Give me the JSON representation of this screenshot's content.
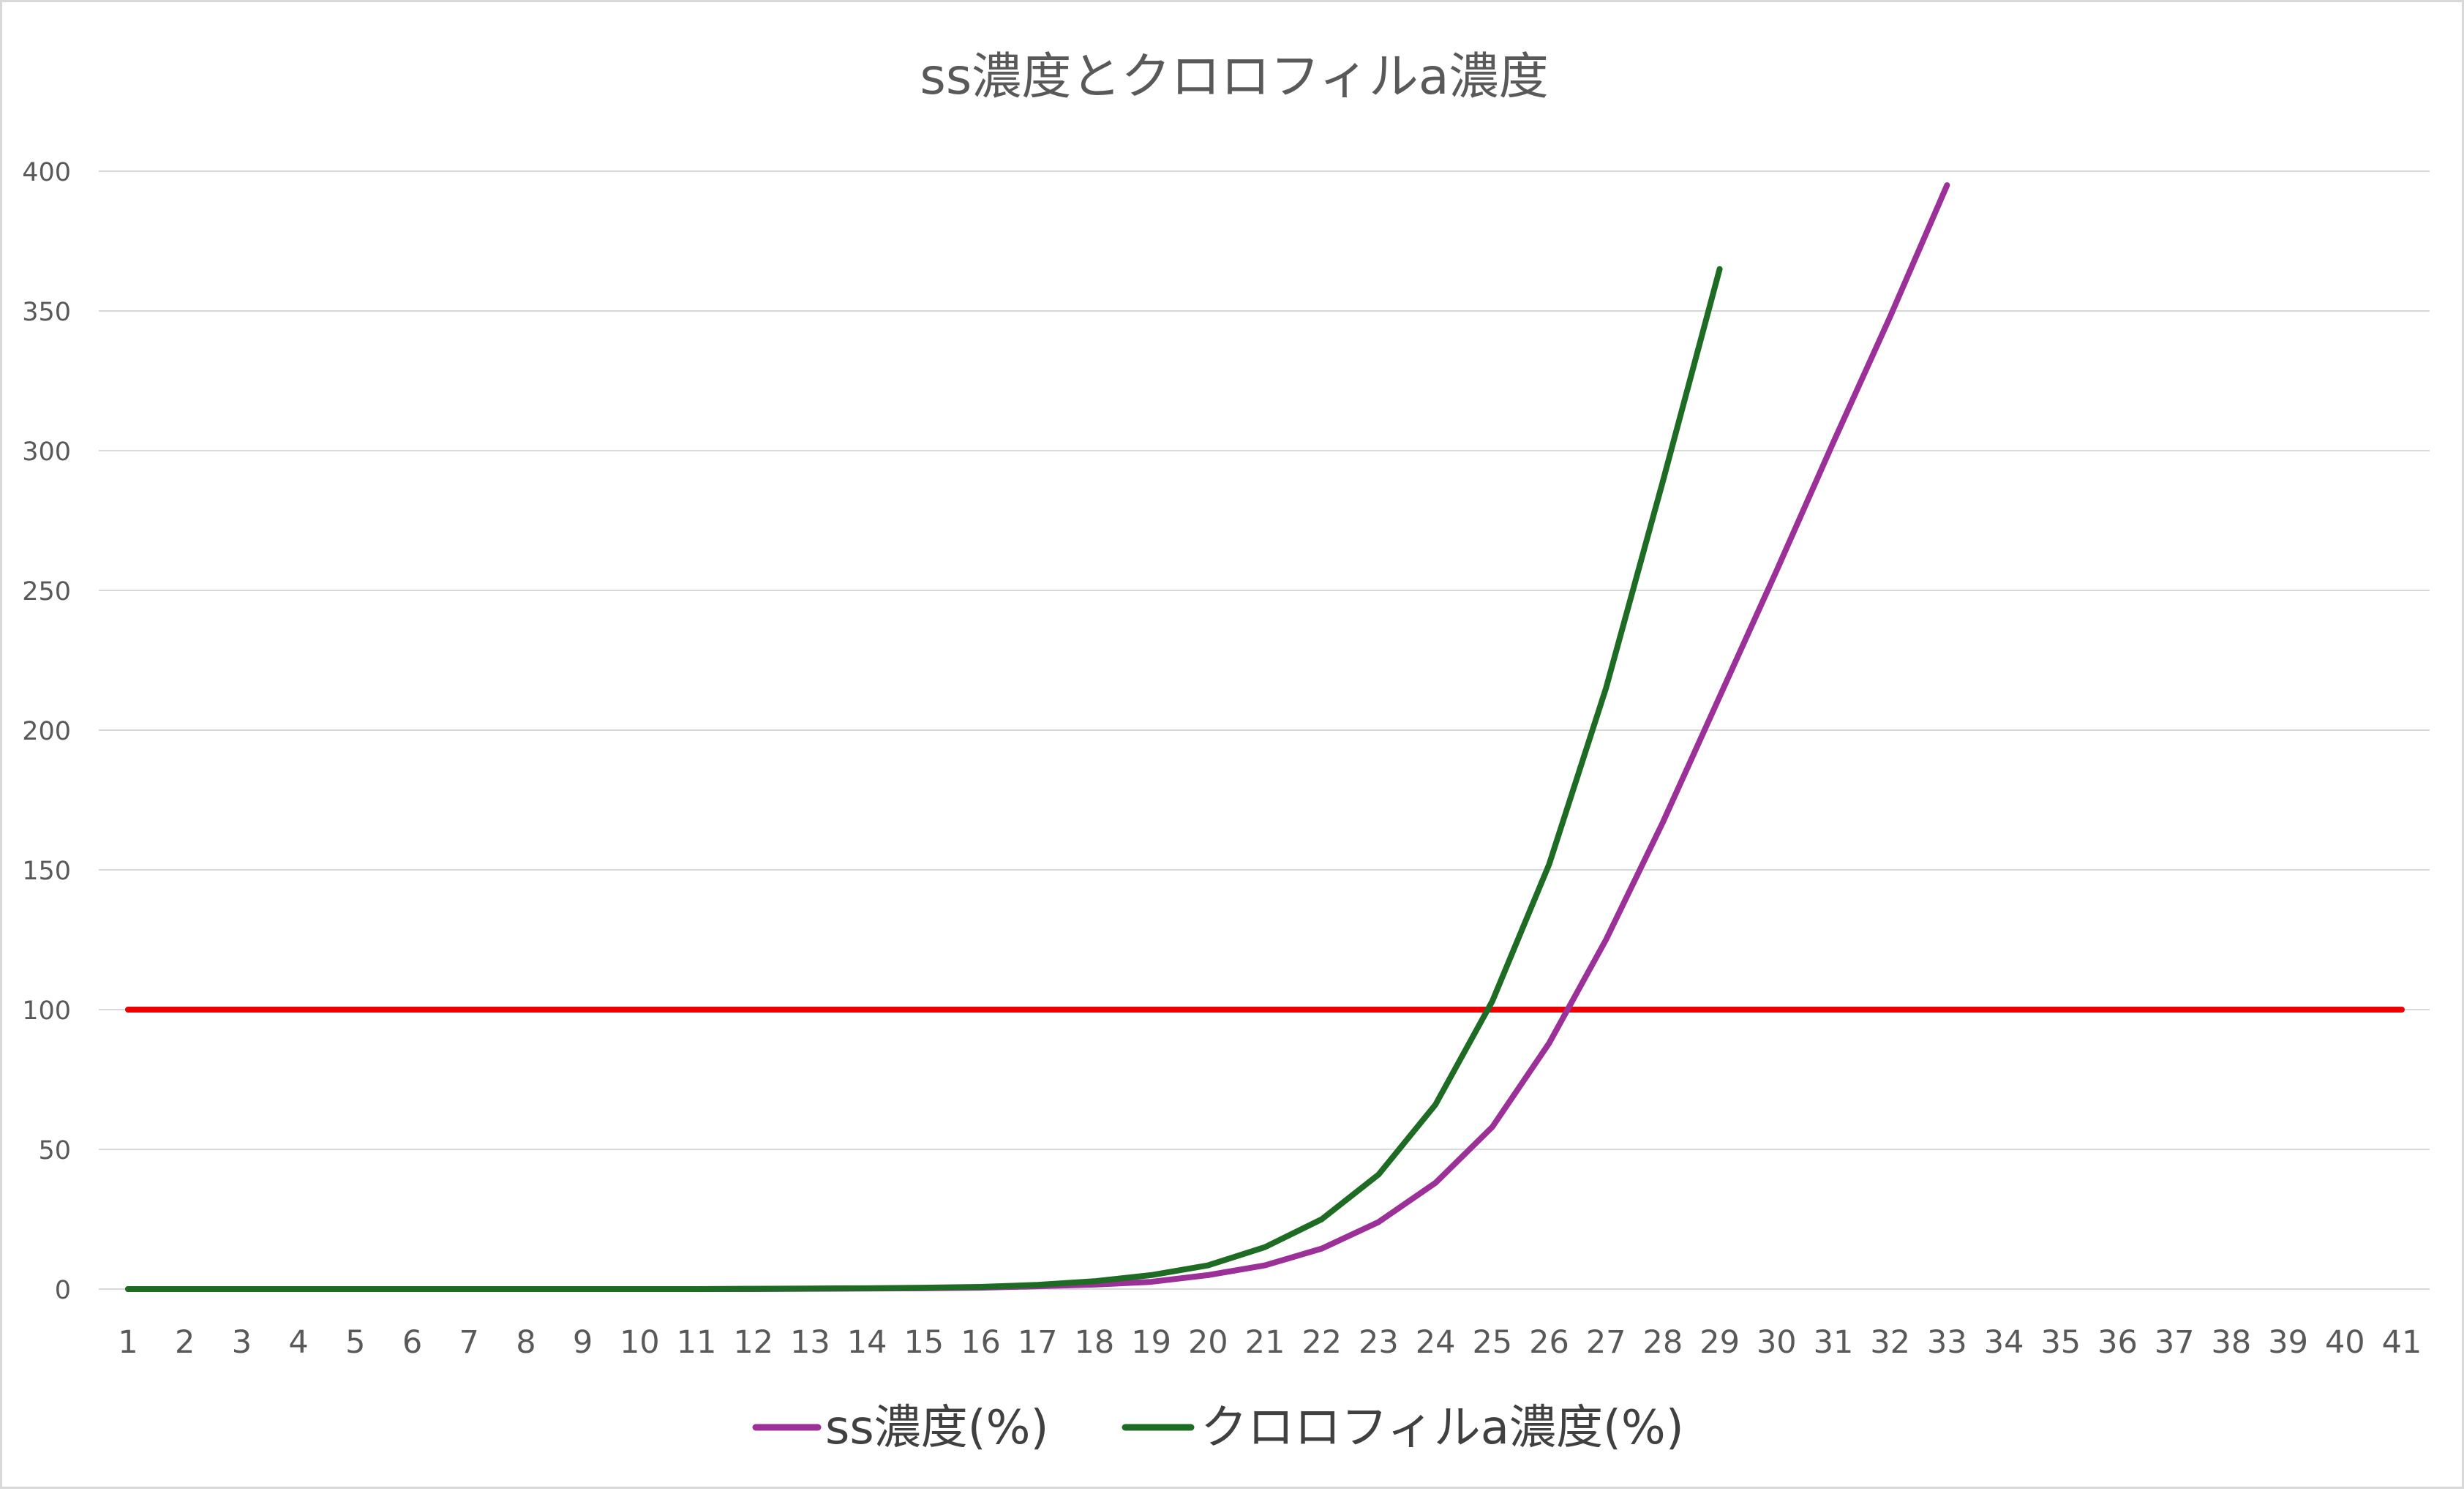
{
  "chart_data": {
    "type": "line",
    "title": "ss濃度とクロロフィルa濃度",
    "xlabel": "",
    "ylabel": "",
    "categories": [
      "1",
      "2",
      "3",
      "4",
      "5",
      "6",
      "7",
      "8",
      "9",
      "10",
      "11",
      "12",
      "13",
      "14",
      "15",
      "16",
      "17",
      "18",
      "19",
      "20",
      "21",
      "22",
      "23",
      "24",
      "25",
      "26",
      "27",
      "28",
      "29",
      "30",
      "31",
      "32",
      "33",
      "34",
      "35",
      "36",
      "37",
      "38",
      "39",
      "40",
      "41"
    ],
    "ylim": [
      0,
      400
    ],
    "yticks": [
      "0",
      "50",
      "100",
      "150",
      "200",
      "250",
      "300",
      "350",
      "400"
    ],
    "grid": true,
    "legend_position": "bottom",
    "series": [
      {
        "name": "ss濃度(%)",
        "color": "#9b3198",
        "values": [
          0,
          0,
          0,
          0,
          0,
          0,
          0,
          0,
          0,
          0,
          0,
          0,
          0.1,
          0.2,
          0.3,
          0.5,
          1,
          1.6,
          2.6,
          5,
          8.5,
          14.5,
          24,
          38,
          58,
          88,
          125,
          167,
          212,
          257,
          303,
          348,
          395,
          null,
          null,
          null,
          null,
          null,
          null,
          null,
          null
        ]
      },
      {
        "name": "クロロフィルa濃度(%)",
        "color": "#1e6b24",
        "values": [
          0,
          0,
          0,
          0,
          0,
          0,
          0,
          0,
          0,
          0,
          0,
          0.1,
          0.2,
          0.3,
          0.5,
          0.8,
          1.5,
          2.8,
          5,
          8.5,
          15,
          25,
          41,
          66,
          103,
          152,
          215,
          289,
          365,
          null,
          null,
          null,
          null,
          null,
          null,
          null,
          null,
          null,
          null,
          null,
          null
        ]
      },
      {
        "name": "",
        "color": "#ee0000",
        "values": [
          100,
          100,
          100,
          100,
          100,
          100,
          100,
          100,
          100,
          100,
          100,
          100,
          100,
          100,
          100,
          100,
          100,
          100,
          100,
          100,
          100,
          100,
          100,
          100,
          100,
          100,
          100,
          100,
          100,
          100,
          100,
          100,
          100,
          100,
          100,
          100,
          100,
          100,
          100,
          100,
          100
        ]
      }
    ]
  }
}
